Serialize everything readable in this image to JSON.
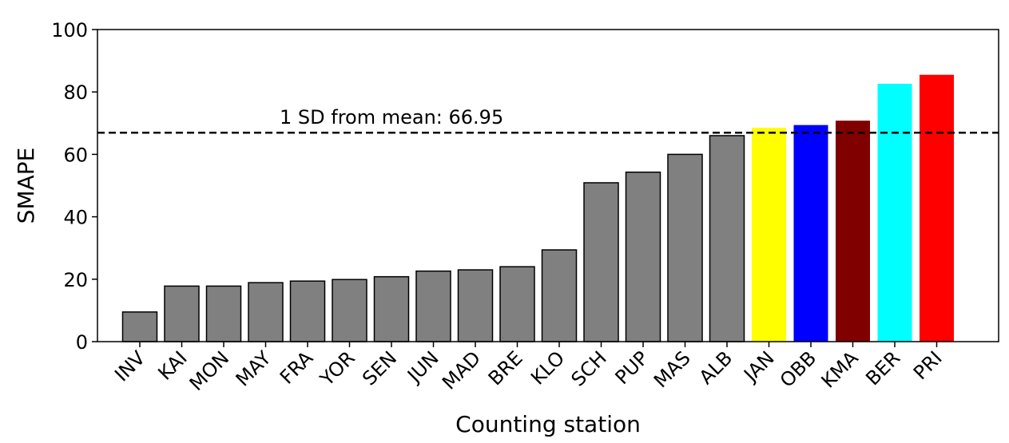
{
  "chart_data": {
    "type": "bar",
    "title": "",
    "xlabel": "Counting station",
    "ylabel": "SMAPE",
    "ylim": [
      0,
      100
    ],
    "yticks": [
      0,
      20,
      40,
      60,
      80,
      100
    ],
    "grid": false,
    "categories": [
      "INV",
      "KAI",
      "MON",
      "MAY",
      "FRA",
      "YOR",
      "SEN",
      "JUN",
      "MAD",
      "BRE",
      "KLO",
      "SCH",
      "PUP",
      "MAS",
      "ALB",
      "JAN",
      "OBB",
      "KMA",
      "BER",
      "PRI"
    ],
    "values": [
      9.5,
      17.8,
      17.8,
      18.9,
      19.4,
      19.9,
      20.8,
      22.6,
      23.0,
      24.0,
      29.4,
      50.9,
      54.3,
      60.0,
      66.0,
      68.5,
      69.4,
      70.8,
      82.6,
      85.5
    ],
    "colors": [
      "#808080",
      "#808080",
      "#808080",
      "#808080",
      "#808080",
      "#808080",
      "#808080",
      "#808080",
      "#808080",
      "#808080",
      "#808080",
      "#808080",
      "#808080",
      "#808080",
      "#808080",
      "#ffff00",
      "#0000ff",
      "#800000",
      "#00ffff",
      "#ff0000"
    ],
    "bar_outlined": [
      true,
      true,
      true,
      true,
      true,
      true,
      true,
      true,
      true,
      true,
      true,
      true,
      true,
      true,
      true,
      false,
      false,
      false,
      false,
      false
    ],
    "reference_line": {
      "value": 66.95,
      "label": "1 SD from mean: 66.95",
      "style": "dashed",
      "color": "#000000"
    }
  }
}
